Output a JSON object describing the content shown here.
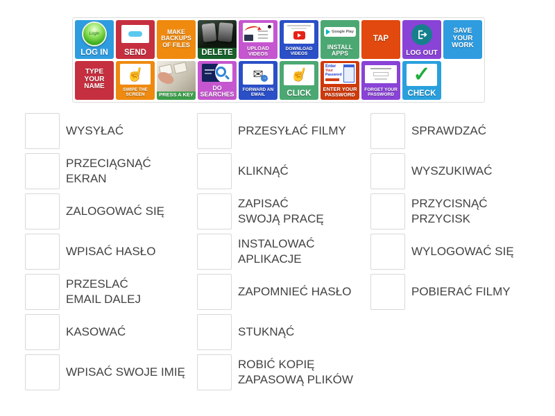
{
  "bank": {
    "rows": [
      [
        {
          "label": "LOG IN",
          "bg": "#2f9ce0",
          "icon": "login-button-icon",
          "label_size": "lg"
        },
        {
          "label": "SEND",
          "bg": "#c62f3f",
          "icon": "send-message-icon",
          "label_size": "lg"
        },
        {
          "label": "MAKE BACKUPS OF FILES",
          "bg": "#ef8a0e",
          "label_size": "md"
        },
        {
          "label": "DELETE",
          "bg": "#17612a",
          "icon": "keyboard-delete-keys-icon",
          "label_size": "lg"
        },
        {
          "label": "UPLOAD VIDEOS",
          "bg": "#c556cf",
          "icon": "upload-screenshot-icon",
          "label_size": "sm"
        },
        {
          "label": "DOWNLOAD VIDEOS",
          "bg": "#2b4fc7",
          "icon": "youtube-download-icon",
          "label_size": "xs"
        },
        {
          "label": "INSTALL APPS",
          "bg": "#4ca873",
          "icon": "google-play-icon",
          "label_size": "md"
        },
        {
          "label": "TAP",
          "bg": "#e1490e",
          "label_size": "lg"
        },
        {
          "label": "LOG OUT",
          "bg": "#8943d6",
          "icon": "logout-arrow-icon",
          "label_size": "ml"
        },
        {
          "label": "SAVE YOUR WORK",
          "bg": "#2f9ce0",
          "label_size": "ml"
        }
      ],
      [
        {
          "label": "TYPE YOUR NAME",
          "bg": "#c62f3f",
          "label_size": "ml"
        },
        {
          "label": "SWIPE THE SCREEN",
          "bg": "#ee8a10",
          "icon": "swipe-hand-icon",
          "label_size": "xs"
        },
        {
          "label": "PRESS A KEY",
          "bg": "#3da04b",
          "icon": "press-key-photo-icon",
          "label_size": "sm"
        },
        {
          "label": "DO SEARCHES",
          "bg": "#c556cf",
          "icon": "search-magnifier-icon",
          "label_size": "md"
        },
        {
          "label": "FORWARD AN EMAIL",
          "bg": "#2b4fc7",
          "icon": "forward-envelope-icon",
          "label_size": "xs"
        },
        {
          "label": "CLICK",
          "bg": "#4ca873",
          "icon": "click-hand-icon",
          "label_size": "lg"
        },
        {
          "label": "ENTER YOUR PASSWORD",
          "bg": "#cf3a0c",
          "icon": "enter-password-screenshot-icon",
          "label_size": "sm"
        },
        {
          "label": "FORGET YOUR PASSWORD",
          "bg": "#8943d6",
          "icon": "forgot-password-form-icon",
          "label_size": "xs"
        },
        {
          "label": "CHECK",
          "bg": "#29a0dd",
          "icon": "green-check-icon",
          "label_size": "lg"
        }
      ]
    ]
  },
  "questions": {
    "columns": [
      {
        "items": [
          {
            "label": "WYSYŁAĆ"
          },
          {
            "label": "PRZECIĄGNĄĆ\nEKRAN"
          },
          {
            "label": "ZALOGOWAĆ SIĘ"
          },
          {
            "label": "WPISAĆ HASŁO"
          },
          {
            "label": "PRZESLAĆ\nEMAIL DALEJ"
          },
          {
            "label": "KASOWAĆ"
          },
          {
            "label": "WPISAĆ SWOJE IMIĘ"
          }
        ]
      },
      {
        "items": [
          {
            "label": "PRZESYŁAĆ FILMY"
          },
          {
            "label": "KLIKNĄĆ"
          },
          {
            "label": "ZAPISAĆ\nSWOJĄ PRACĘ"
          },
          {
            "label": "INSTALOWAĆ\nAPLIKACJE"
          },
          {
            "label": "ZAPOMNIEĆ HASŁO"
          },
          {
            "label": "STUKNĄĆ"
          },
          {
            "label": "ROBIĆ KOPIĘ\nZAPASOWĄ PLIKÓW"
          }
        ]
      },
      {
        "items": [
          {
            "label": "SPRAWDZAĆ"
          },
          {
            "label": "WYSZUKIWAĆ"
          },
          {
            "label": "PRZYCISNĄĆ\nPRZYCISK"
          },
          {
            "label": "WYLOGOWAĆ SIĘ"
          },
          {
            "label": "POBIERAĆ FILMY"
          }
        ]
      }
    ]
  },
  "colors": {
    "drop_zone_border": "#d8d8d8",
    "question_text": "#424242",
    "bank_border": "#dcdcdc"
  }
}
